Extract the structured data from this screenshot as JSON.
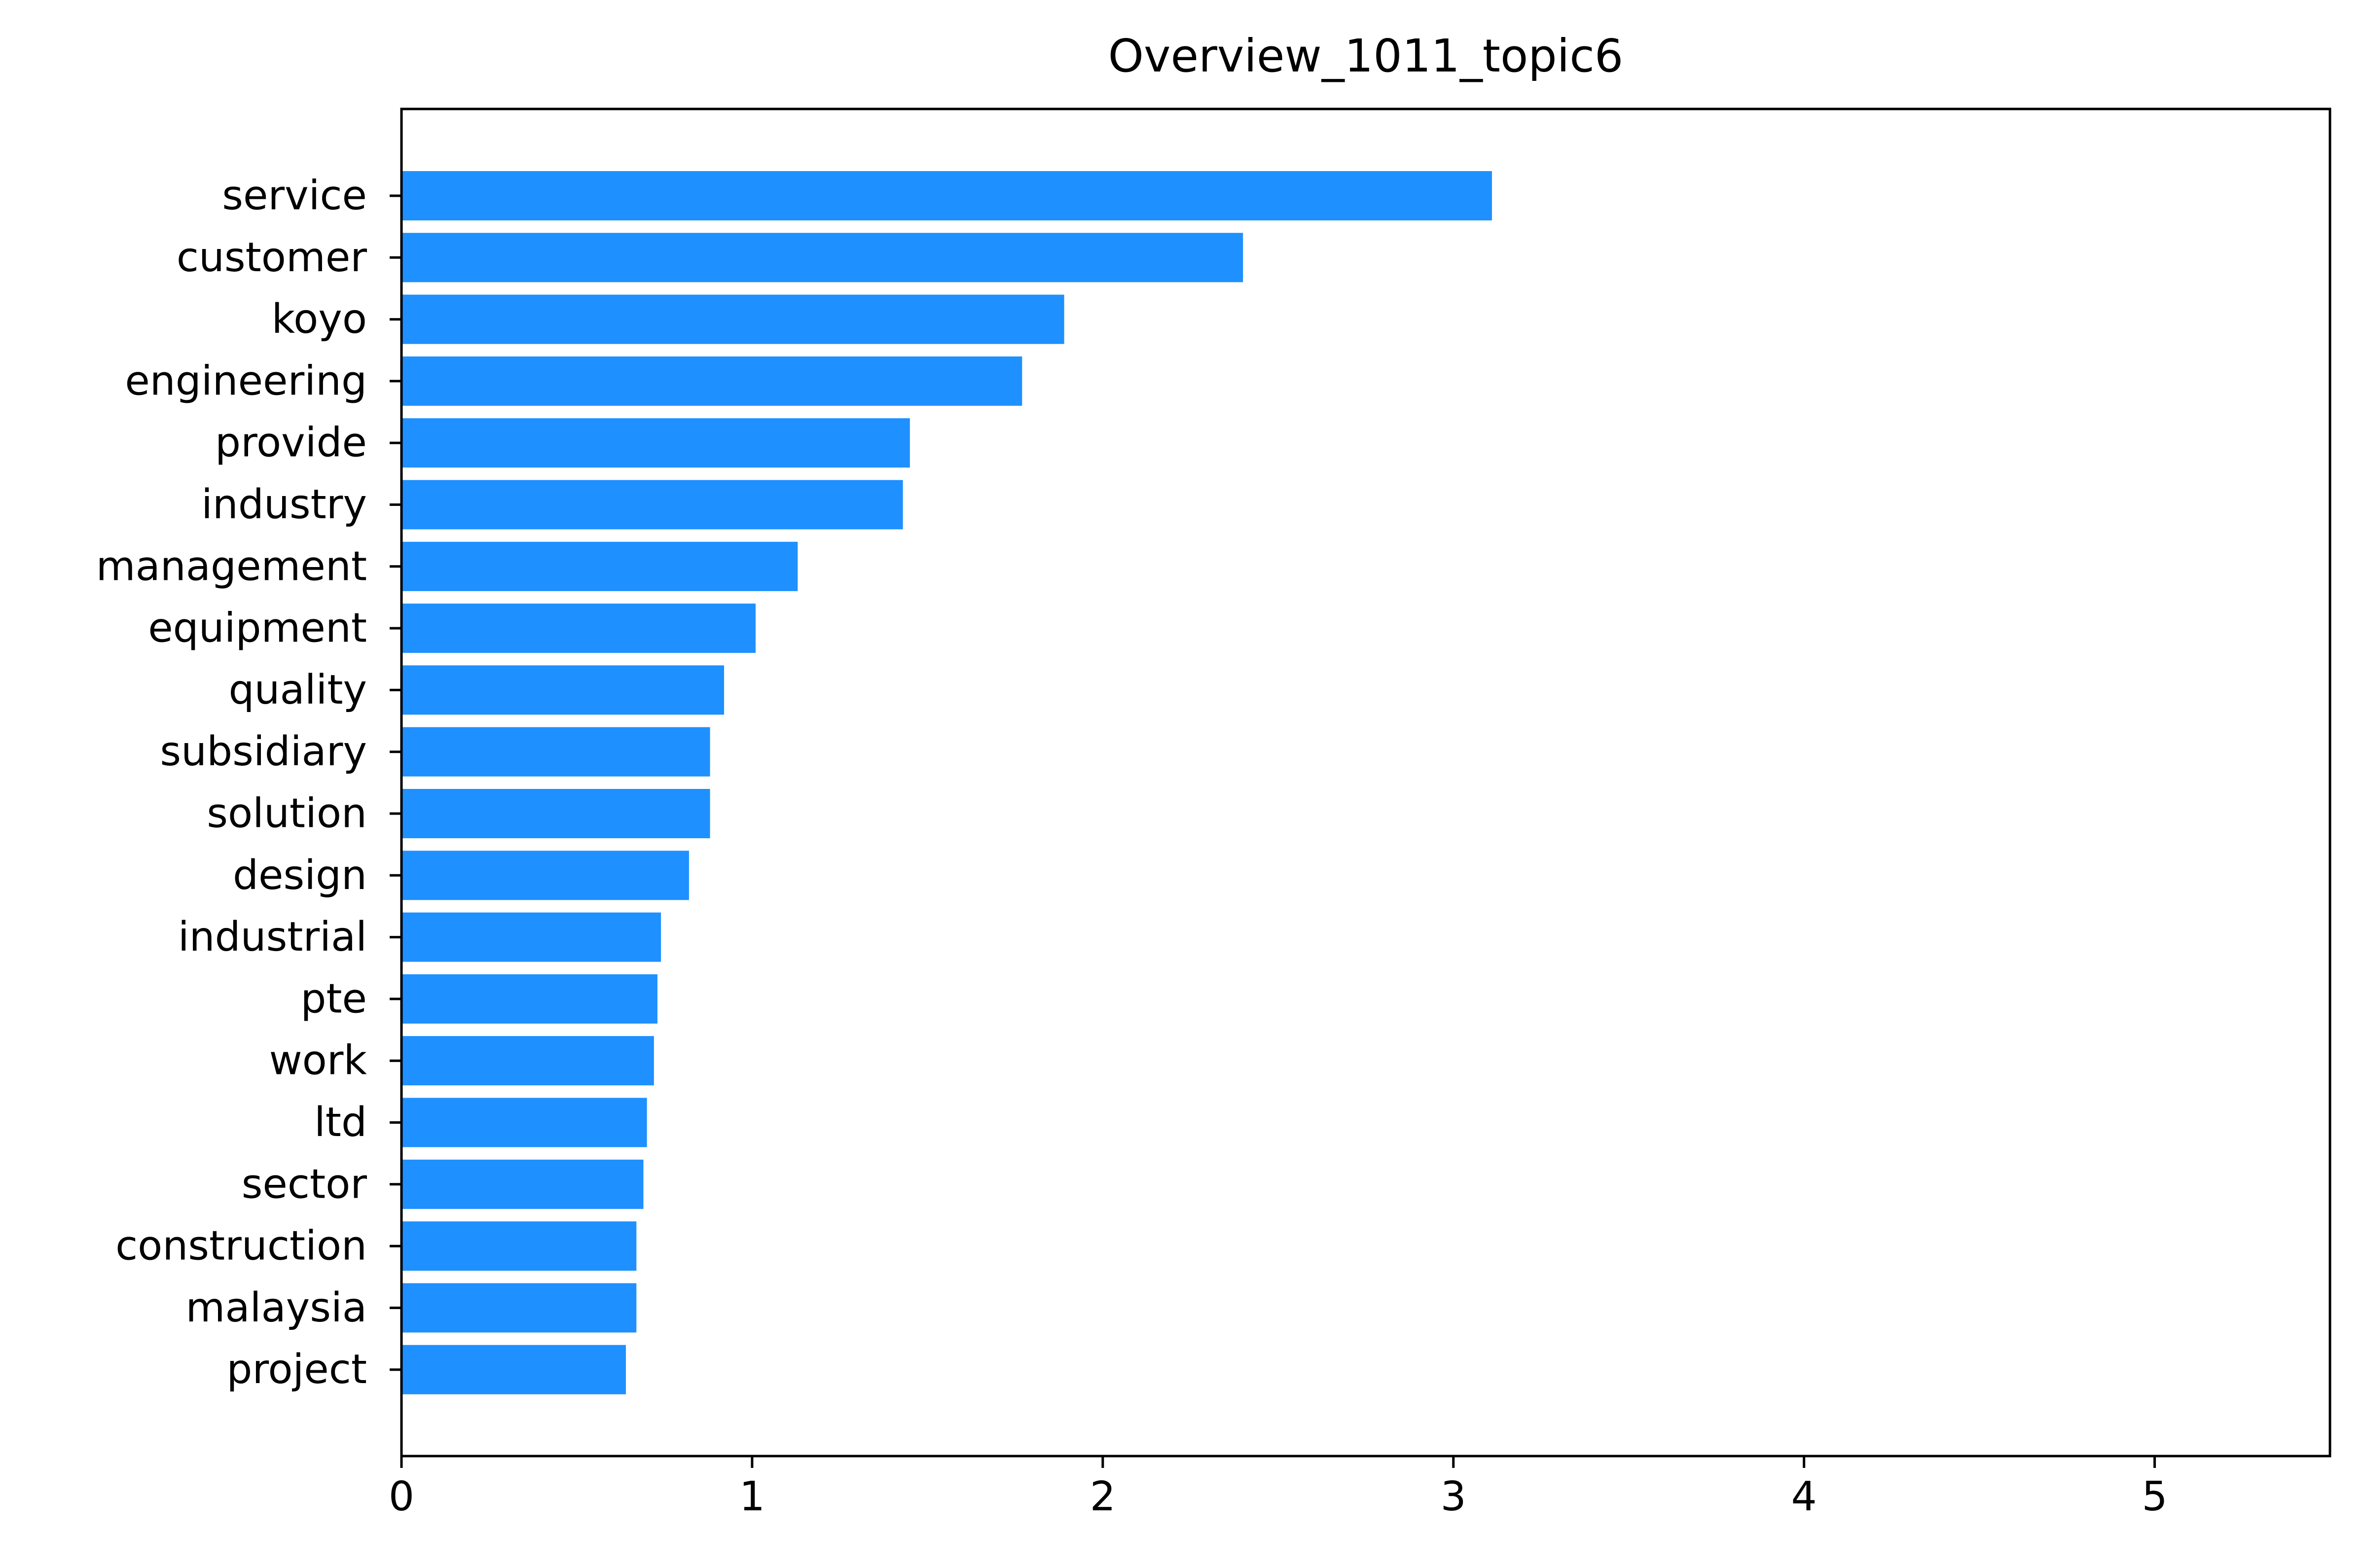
{
  "chart_data": {
    "type": "bar",
    "orientation": "horizontal",
    "title": "Overview_1011_topic6",
    "xlabel": "",
    "ylabel": "",
    "categories": [
      "service",
      "customer",
      "koyo",
      "engineering",
      "provide",
      "industry",
      "management",
      "equipment",
      "quality",
      "subsidiary",
      "solution",
      "design",
      "industrial",
      "pte",
      "work",
      "ltd",
      "sector",
      "construction",
      "malaysia",
      "project"
    ],
    "values": [
      3.11,
      2.4,
      1.89,
      1.77,
      1.45,
      1.43,
      1.13,
      1.01,
      0.92,
      0.88,
      0.88,
      0.82,
      0.74,
      0.73,
      0.72,
      0.7,
      0.69,
      0.67,
      0.67,
      0.64
    ],
    "xlim": [
      0,
      5.5
    ],
    "xticks": [
      "0",
      "1",
      "2",
      "3",
      "4",
      "5"
    ],
    "grid": false,
    "bar_color": "#1e90ff"
  }
}
